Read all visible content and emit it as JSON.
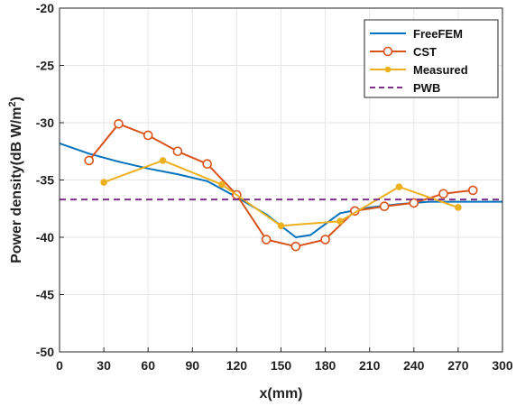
{
  "chart_data": {
    "type": "line",
    "xlabel": "x(mm)",
    "ylabel_main": "Power density(dB W/m",
    "ylabel_sup": "2",
    "ylabel_close": ")",
    "xlim": [
      0,
      300
    ],
    "ylim": [
      -50,
      -20
    ],
    "xticks": [
      0,
      30,
      60,
      90,
      120,
      150,
      180,
      210,
      240,
      270,
      300
    ],
    "yticks": [
      -50,
      -45,
      -40,
      -35,
      -30,
      -25,
      -20
    ],
    "grid": true,
    "legend_position": "top-right",
    "series": [
      {
        "name": "FreeFEM",
        "color": "#0072BD",
        "marker": "none",
        "dash": "solid",
        "x": [
          0,
          20,
          40,
          60,
          80,
          100,
          120,
          140,
          160,
          170,
          190,
          210,
          230,
          250,
          270,
          300
        ],
        "y": [
          -31.8,
          -32.7,
          -33.4,
          -34.0,
          -34.5,
          -35.1,
          -36.5,
          -38.0,
          -40.0,
          -39.8,
          -37.9,
          -37.4,
          -37.1,
          -36.9,
          -36.9,
          -36.9
        ]
      },
      {
        "name": "CST",
        "color": "#D95319",
        "marker": "open-circle",
        "dash": "solid",
        "x": [
          20,
          40,
          60,
          80,
          100,
          120,
          140,
          160,
          180,
          200,
          220,
          240,
          260,
          280
        ],
        "y": [
          -33.3,
          -30.1,
          -31.1,
          -32.5,
          -33.6,
          -36.3,
          -40.2,
          -40.8,
          -40.2,
          -37.7,
          -37.3,
          -37.0,
          -36.2,
          -35.9
        ]
      },
      {
        "name": "Measured",
        "color": "#EDB120",
        "marker": "filled-circle",
        "dash": "solid",
        "x": [
          30,
          70,
          110,
          150,
          190,
          230,
          270
        ],
        "y": [
          -35.2,
          -33.3,
          -35.4,
          -39.0,
          -38.6,
          -35.6,
          -37.4
        ]
      },
      {
        "name": "PWB",
        "color": "#7E2F8E",
        "marker": "none",
        "dash": "dashed",
        "x": [
          0,
          300
        ],
        "y": [
          -36.7,
          -36.7
        ]
      }
    ]
  }
}
